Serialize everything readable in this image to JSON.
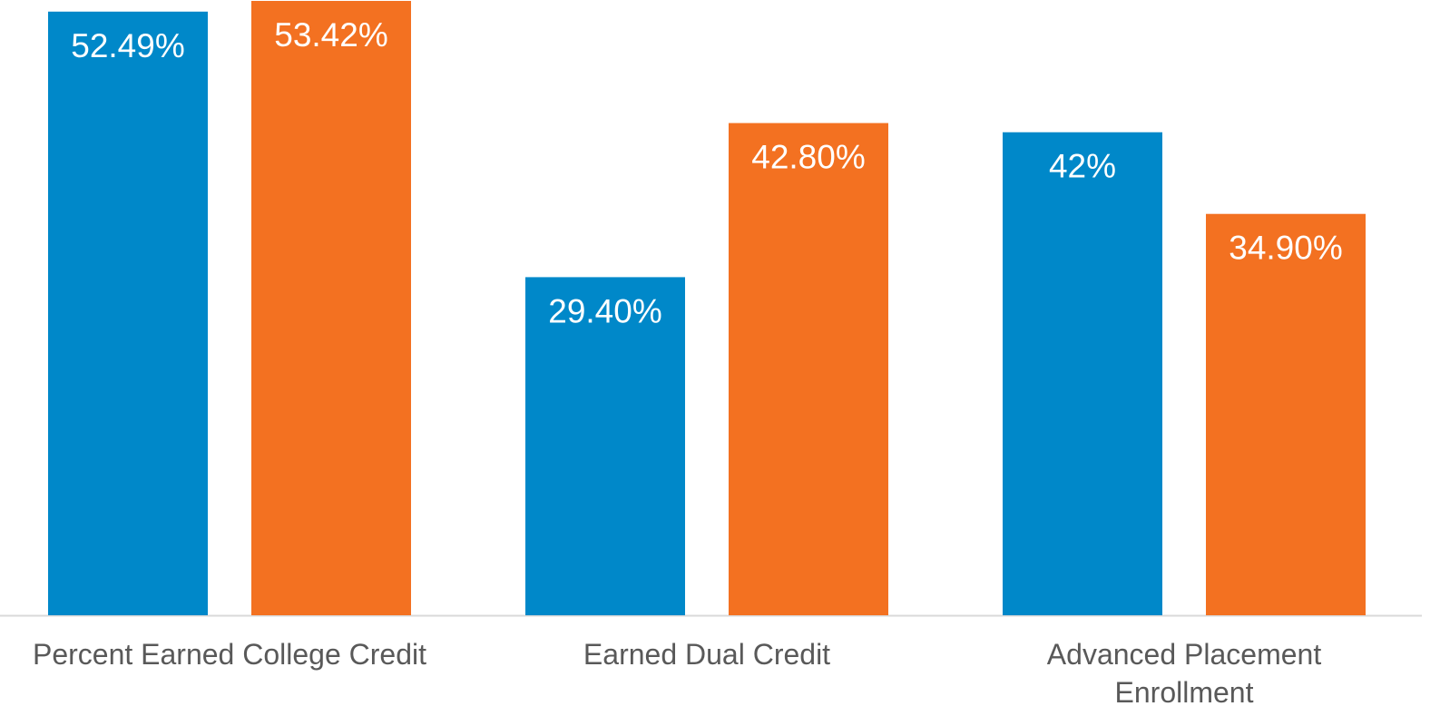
{
  "chart_data": {
    "type": "bar",
    "categories": [
      "Percent Earned College Credit",
      "Earned Dual Credit",
      "Advanced Placement Enrollment"
    ],
    "series": [
      {
        "color": "#0088c9",
        "values": [
          52.49,
          29.4,
          42
        ],
        "value_labels": [
          "52.49%",
          "29.40%",
          "42%"
        ]
      },
      {
        "color": "#f37121",
        "values": [
          53.42,
          42.8,
          34.9
        ],
        "value_labels": [
          "53.42%",
          "42.80%",
          "34.90%"
        ]
      }
    ],
    "ylim": [
      0,
      53.5
    ]
  }
}
